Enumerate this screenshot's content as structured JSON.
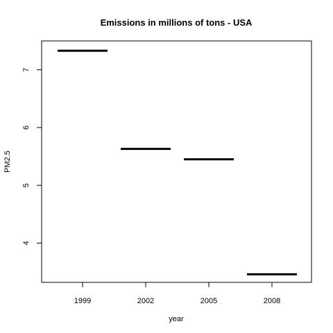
{
  "chart_data": {
    "type": "bar",
    "title": "Emissions in millions of tons - USA",
    "xlabel": "year",
    "ylabel": "PM2.5",
    "categories": [
      "1999",
      "2002",
      "2005",
      "2008"
    ],
    "values": [
      7.33,
      5.63,
      5.45,
      3.46
    ],
    "ylim": [
      3.32,
      7.5
    ],
    "yticks": [
      "4",
      "5",
      "6",
      "7"
    ],
    "mark_style": "horizontal segment per category",
    "grid": false,
    "legend": "none",
    "colors": {
      "marks": "#000000",
      "axes": "#000000",
      "background": "#ffffff"
    }
  }
}
